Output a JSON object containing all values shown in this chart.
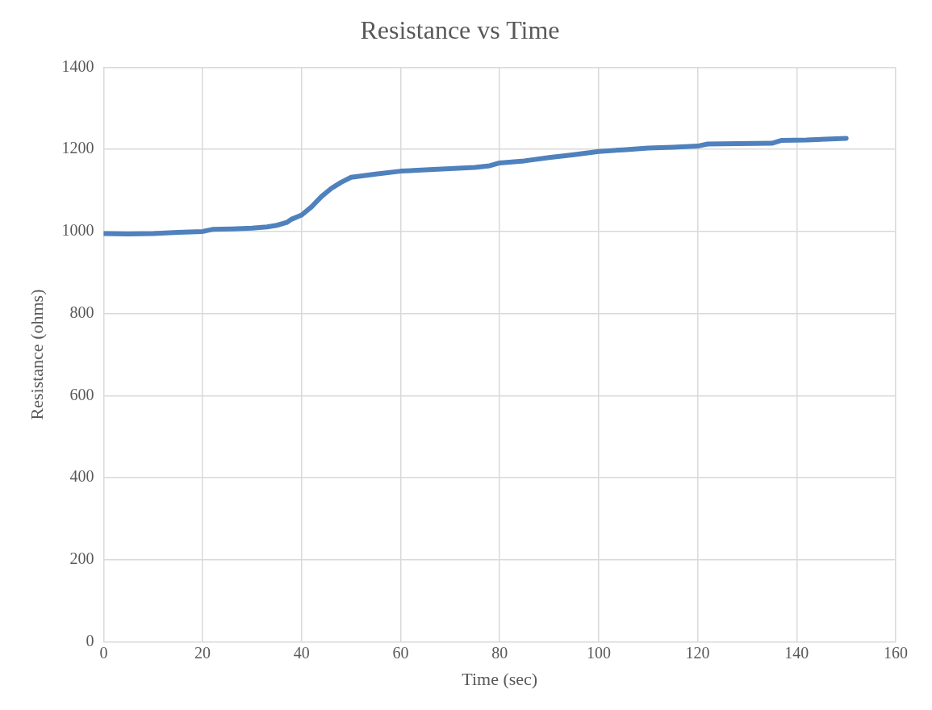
{
  "chart_data": {
    "type": "line",
    "title": "Resistance vs Time",
    "xlabel": "Time (sec)",
    "ylabel": "Resistance (ohms)",
    "x": [
      0,
      5,
      10,
      15,
      20,
      22,
      26,
      30,
      33,
      35,
      37,
      38,
      40,
      42,
      44,
      46,
      48,
      50,
      55,
      60,
      65,
      70,
      75,
      78,
      80,
      85,
      90,
      95,
      100,
      105,
      110,
      115,
      120,
      122,
      128,
      135,
      137,
      142,
      150
    ],
    "series": [
      {
        "color": "#4f81bd",
        "values": [
          995,
          994,
          995,
          998,
          1000,
          1005,
          1006,
          1008,
          1011,
          1015,
          1022,
          1030,
          1040,
          1060,
          1085,
          1105,
          1120,
          1132,
          1140,
          1147,
          1150,
          1153,
          1156,
          1160,
          1167,
          1172,
          1180,
          1187,
          1195,
          1199,
          1203,
          1205,
          1208,
          1213,
          1214,
          1215,
          1222,
          1223,
          1227
        ]
      }
    ],
    "xlim": [
      0,
      160
    ],
    "xticks": [
      0,
      20,
      40,
      60,
      80,
      100,
      120,
      140,
      160
    ],
    "ylim": [
      0,
      1400
    ],
    "yticks": [
      0,
      200,
      400,
      600,
      800,
      1000,
      1200,
      1400
    ],
    "grid": true,
    "legend": false,
    "marker": "none",
    "line_style": "solid"
  }
}
